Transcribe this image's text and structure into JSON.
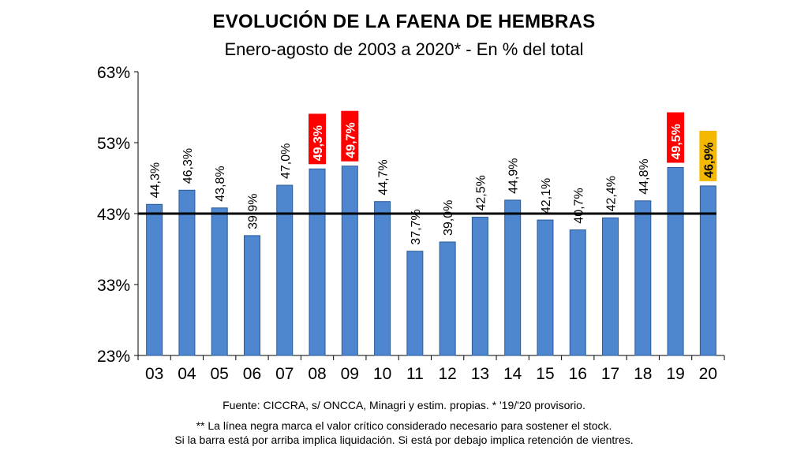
{
  "chart_data": {
    "type": "bar",
    "title": "EVOLUCIÓN DE LA FAENA DE HEMBRAS",
    "subtitle": "Enero-agosto de 2003 a 2020* - En % del total",
    "categories": [
      "03",
      "04",
      "05",
      "06",
      "07",
      "08",
      "09",
      "10",
      "11",
      "12",
      "13",
      "14",
      "15",
      "16",
      "17",
      "18",
      "19",
      "20"
    ],
    "values": [
      44.3,
      46.3,
      43.8,
      39.9,
      47.0,
      49.3,
      49.7,
      44.7,
      37.7,
      39.0,
      42.5,
      44.9,
      42.1,
      40.7,
      42.4,
      44.8,
      49.5,
      46.9
    ],
    "labels": [
      "44,3%",
      "46,3%",
      "43,8%",
      "39,9%",
      "47,0%",
      "49,3%",
      "49,7%",
      "44,7%",
      "37,7%",
      "39,0%",
      "42,5%",
      "44,9%",
      "42,1%",
      "40,7%",
      "42,4%",
      "44,8%",
      "49,5%",
      "46,9%"
    ],
    "highlight": [
      "none",
      "none",
      "none",
      "none",
      "none",
      "red",
      "red",
      "none",
      "none",
      "none",
      "none",
      "none",
      "none",
      "none",
      "none",
      "none",
      "red",
      "yellow"
    ],
    "reference_line": 43,
    "ylim": [
      23,
      63
    ],
    "yticks": [
      23,
      33,
      43,
      53,
      63
    ],
    "ytick_labels": [
      "23%",
      "33%",
      "43%",
      "53%",
      "63%"
    ],
    "xlabel": "",
    "ylabel": "",
    "grid": false,
    "colors": {
      "bar": "#4f86d0",
      "bar_stroke": "#2a5a9a",
      "reference_line": "#000000",
      "red_label": "#ff0000",
      "yellow_label": "#f5b800"
    }
  },
  "source": "Fuente: CICCRA, s/ ONCCA, Minagri y estim. propias. * '19/'20  provisorio.",
  "note_line1": "** La línea negra marca el valor crítico considerado necesario para sostener el stock.",
  "note_line2": "Si la barra está por arriba implica liquidación. Si está por debajo implica retención de vientres."
}
